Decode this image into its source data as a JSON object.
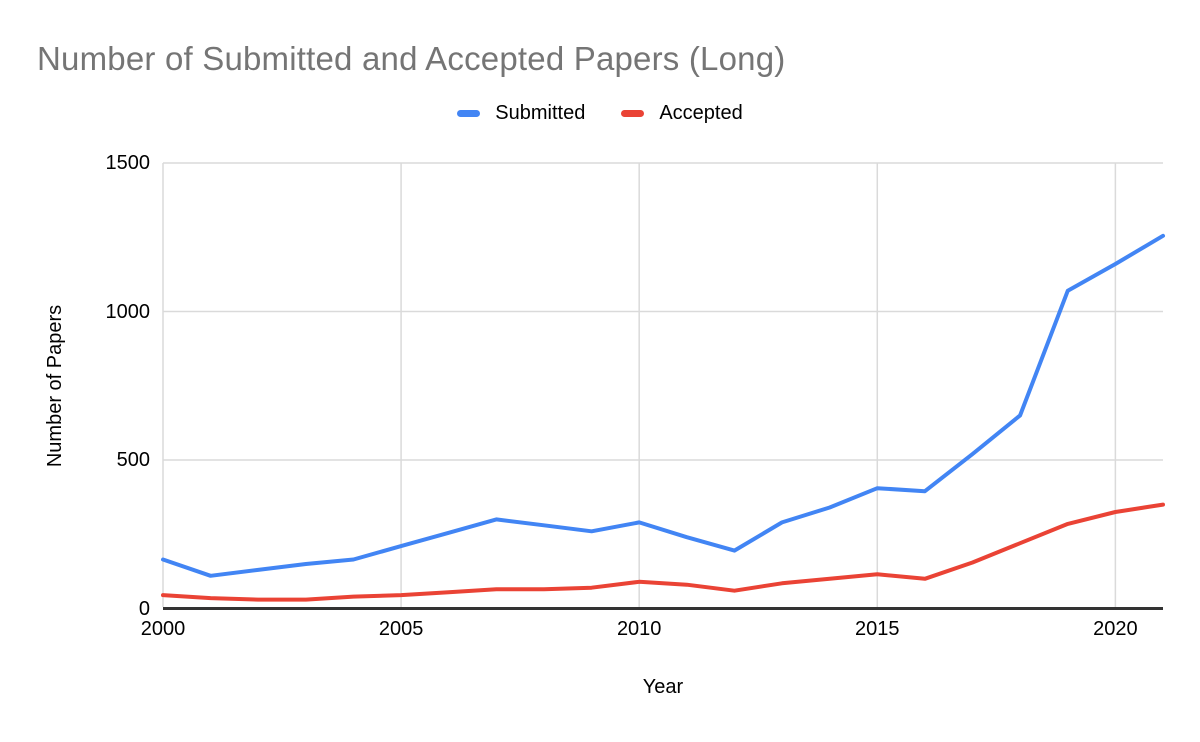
{
  "title": "Number of Submitted and Accepted Papers (Long)",
  "colors": {
    "submitted_line": "#4285F4",
    "accepted_line": "#EA4335",
    "title_text": "#757575",
    "tick_text": "#000000",
    "gridline": "#DADADA",
    "axis_line": "#333333",
    "background": "#FFFFFF"
  },
  "chart_data": {
    "type": "line",
    "title": "Number of Submitted and Accepted Papers (Long)",
    "xlabel": "Year",
    "ylabel": "Number of Papers",
    "x": [
      2000,
      2001,
      2002,
      2003,
      2004,
      2005,
      2006,
      2007,
      2008,
      2009,
      2010,
      2011,
      2012,
      2013,
      2014,
      2015,
      2016,
      2017,
      2018,
      2019,
      2020,
      2021
    ],
    "series": [
      {
        "name": "Submitted",
        "color": "#4285F4",
        "values": [
          165,
          110,
          130,
          150,
          165,
          210,
          255,
          300,
          280,
          260,
          290,
          240,
          195,
          290,
          340,
          405,
          395,
          520,
          650,
          1070,
          1160,
          1255
        ]
      },
      {
        "name": "Accepted",
        "color": "#EA4335",
        "values": [
          45,
          35,
          30,
          30,
          40,
          45,
          55,
          65,
          65,
          70,
          90,
          80,
          60,
          85,
          100,
          115,
          100,
          155,
          220,
          285,
          325,
          350
        ]
      }
    ],
    "xlim": [
      2000,
      2021
    ],
    "ylim": [
      0,
      1500
    ],
    "xticks": [
      2000,
      2005,
      2010,
      2015,
      2020
    ],
    "yticks": [
      0,
      500,
      1000,
      1500
    ],
    "grid": true,
    "legend_position": "top"
  }
}
